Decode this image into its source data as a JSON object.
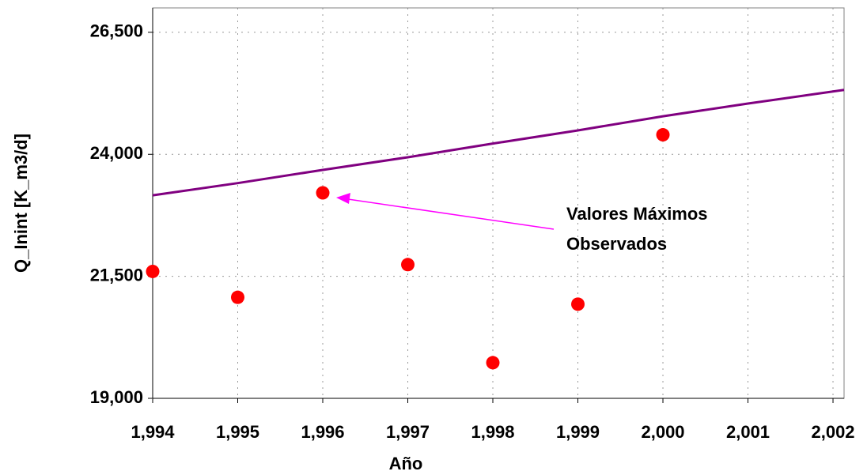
{
  "chart_data": {
    "type": "scatter",
    "x_label": "Año",
    "y_label": "Q_Inint [K_m3/d]",
    "annotation": [
      "Valores Máximos",
      "Observados"
    ],
    "annotation_color": "#ff00ff",
    "xlim": [
      1994,
      2002.13
    ],
    "ylim": [
      19000,
      27000
    ],
    "xticks": [
      {
        "value": 1994,
        "label": "1,994"
      },
      {
        "value": 1995,
        "label": "1,995"
      },
      {
        "value": 1996,
        "label": "1,996"
      },
      {
        "value": 1997,
        "label": "1,997"
      },
      {
        "value": 1998,
        "label": "1,998"
      },
      {
        "value": 1999,
        "label": "1,999"
      },
      {
        "value": 2000,
        "label": "2,000"
      },
      {
        "value": 2001,
        "label": "2,001"
      },
      {
        "value": 2002,
        "label": "2,002"
      }
    ],
    "yticks": [
      {
        "value": 19000,
        "label": "19,000"
      },
      {
        "value": 21500,
        "label": "21,500"
      },
      {
        "value": 24000,
        "label": "24,000"
      },
      {
        "value": 26500,
        "label": "26,500"
      }
    ],
    "grid": true,
    "series": [
      {
        "type": "scatter",
        "color": "#ff0000",
        "x": [
          1994,
          1995,
          1996,
          1997,
          1998,
          1999,
          2000
        ],
        "values": [
          21600,
          21070,
          23210,
          21740,
          19730,
          20930,
          24400
        ]
      },
      {
        "type": "line",
        "color": "#800080",
        "x": [
          1994,
          1995,
          1996,
          1997,
          1998,
          1999,
          2000,
          2001,
          2002.13
        ],
        "values": [
          23160,
          23410,
          23680,
          23940,
          24220,
          24490,
          24780,
          25040,
          25320
        ]
      }
    ]
  }
}
